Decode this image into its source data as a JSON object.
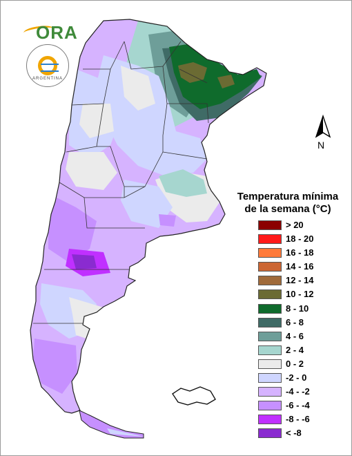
{
  "logos": {
    "ora": "ORA",
    "seal_text": "ARGENTINA"
  },
  "north_arrow": {
    "label": "N",
    "icon": "north-arrow-icon"
  },
  "legend": {
    "title_line1": "Temperatura mínima",
    "title_line2": "de la semana (°C)",
    "items": [
      {
        "label": "> 20",
        "color": "#8b0000"
      },
      {
        "label": "18 - 20",
        "color": "#ff1a1a"
      },
      {
        "label": "16 - 18",
        "color": "#ff7a3a"
      },
      {
        "label": "14 - 16",
        "color": "#cc6633"
      },
      {
        "label": "12 - 14",
        "color": "#a06a3a"
      },
      {
        "label": "10 - 12",
        "color": "#6b6b33"
      },
      {
        "label": "8 - 10",
        "color": "#0f6b2c"
      },
      {
        "label": "6 - 8",
        "color": "#3f6b66"
      },
      {
        "label": "4 - 6",
        "color": "#6e9e99"
      },
      {
        "label": "2 - 4",
        "color": "#a6d6cf"
      },
      {
        "label": "0 - 2",
        "color": "#ebebeb"
      },
      {
        "label": "-2 - 0",
        "color": "#cfd6ff"
      },
      {
        "label": "-4 - -2",
        "color": "#d6b3ff"
      },
      {
        "label": "-6 - -4",
        "color": "#c690ff"
      },
      {
        "label": "-8 - -6",
        "color": "#c030ff"
      },
      {
        "label": "< -8",
        "color": "#8a2bd0"
      }
    ]
  }
}
